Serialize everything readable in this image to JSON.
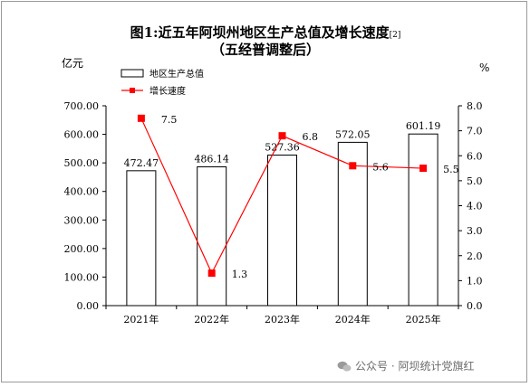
{
  "chart_data": {
    "type": "bar+line",
    "title": "图1:近五年阿坝州地区生产总值及增长速度",
    "title_sup": "[2]",
    "subtitle": "（五经普调整后）",
    "left_unit": "亿元",
    "right_unit": "%",
    "categories": [
      "2021年",
      "2022年",
      "2023年",
      "2024年",
      "2025年"
    ],
    "bars": {
      "name": "地区生产总值",
      "values": [
        472.47,
        486.14,
        527.36,
        572.05,
        601.19
      ],
      "labels": [
        "472.47",
        "486.14",
        "527.36",
        "572.05",
        "601.19"
      ]
    },
    "line": {
      "name": "增长速度",
      "values": [
        7.5,
        1.3,
        6.8,
        5.6,
        5.5
      ],
      "labels": [
        "7.5",
        "1.3",
        "6.8",
        "5.6",
        "5.5"
      ],
      "color": "#ff0000"
    },
    "ylim_left": [
      0,
      700
    ],
    "ylim_right": [
      0,
      8
    ],
    "yticks_left": [
      "0.00",
      "100.00",
      "200.00",
      "300.00",
      "400.00",
      "500.00",
      "600.00",
      "700.00"
    ],
    "yticks_right": [
      "0.0",
      "1.0",
      "2.0",
      "3.0",
      "4.0",
      "5.0",
      "6.0",
      "7.0",
      "8.0"
    ],
    "legend_placement": "top-left",
    "grid": false
  },
  "watermark": {
    "text": "公众号 · 阿坝统计党旗红"
  }
}
